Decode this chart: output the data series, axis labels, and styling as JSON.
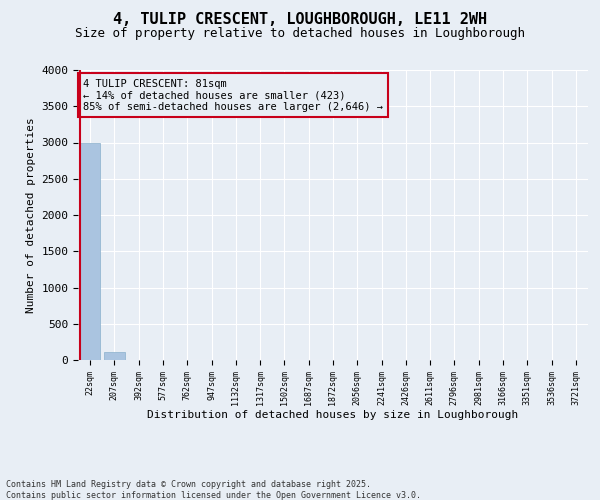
{
  "title1": "4, TULIP CRESCENT, LOUGHBOROUGH, LE11 2WH",
  "title2": "Size of property relative to detached houses in Loughborough",
  "xlabel": "Distribution of detached houses by size in Loughborough",
  "ylabel": "Number of detached properties",
  "categories": [
    "22sqm",
    "207sqm",
    "392sqm",
    "577sqm",
    "762sqm",
    "947sqm",
    "1132sqm",
    "1317sqm",
    "1502sqm",
    "1687sqm",
    "1872sqm",
    "2056sqm",
    "2241sqm",
    "2426sqm",
    "2611sqm",
    "2796sqm",
    "2981sqm",
    "3166sqm",
    "3351sqm",
    "3536sqm",
    "3721sqm"
  ],
  "values": [
    3000,
    110,
    0,
    0,
    0,
    0,
    0,
    0,
    0,
    0,
    0,
    0,
    0,
    0,
    0,
    0,
    0,
    0,
    0,
    0,
    0
  ],
  "bar_color": "#aac4e0",
  "highlight_color": "#c8001a",
  "ylim": [
    0,
    4000
  ],
  "yticks": [
    0,
    500,
    1000,
    1500,
    2000,
    2500,
    3000,
    3500,
    4000
  ],
  "annotation_text": "4 TULIP CRESCENT: 81sqm\n← 14% of detached houses are smaller (423)\n85% of semi-detached houses are larger (2,646) →",
  "footer1": "Contains HM Land Registry data © Crown copyright and database right 2025.",
  "footer2": "Contains public sector information licensed under the Open Government Licence v3.0.",
  "bg_color": "#e8eef5",
  "bar_edge_color": "#8ab0cc",
  "title_fontsize": 11,
  "subtitle_fontsize": 9,
  "grid_color": "#ffffff"
}
